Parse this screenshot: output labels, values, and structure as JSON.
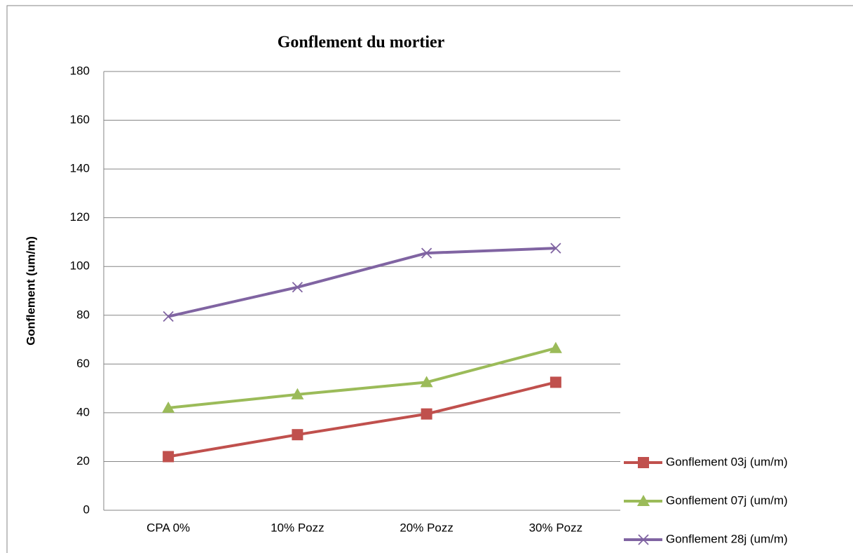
{
  "chart_data": {
    "type": "line",
    "title": "Gonflement du mortier",
    "y_label": "Gonflement  (um/m)",
    "categories": [
      "CPA 0%",
      "10% Pozz",
      "20% Pozz",
      "30% Pozz"
    ],
    "series": [
      {
        "name": "Gonflement 03j (um/m)",
        "color": "#c0504d",
        "marker": "square",
        "values": [
          22,
          31,
          39.5,
          52.5
        ]
      },
      {
        "name": "Gonflement 07j (um/m)",
        "color": "#9bbb59",
        "marker": "triangle",
        "values": [
          42,
          47.5,
          52.5,
          66.5
        ]
      },
      {
        "name": "Gonflement 28j (um/m)",
        "color": "#8064a2",
        "marker": "x",
        "values": [
          79.5,
          91.5,
          105.5,
          107.5
        ]
      }
    ],
    "ylim": [
      0,
      180
    ],
    "yticks": [
      0,
      20,
      40,
      60,
      80,
      100,
      120,
      140,
      160,
      180
    ],
    "grid": true,
    "legend": "right"
  }
}
